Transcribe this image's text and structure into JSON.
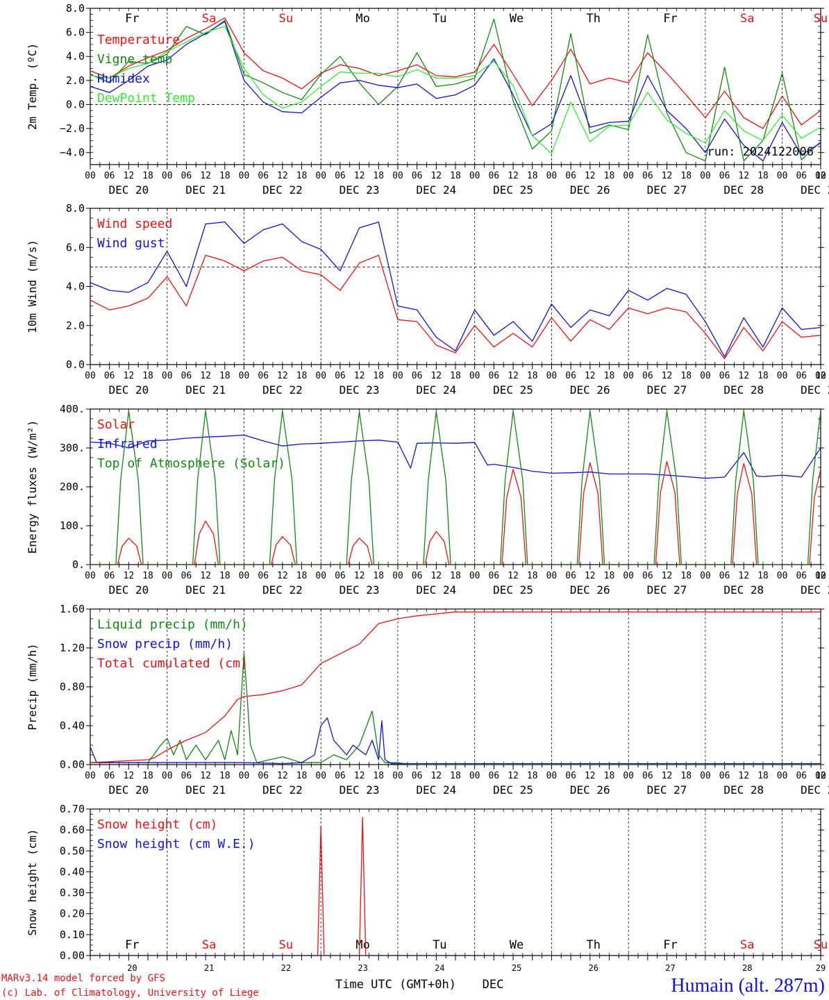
{
  "colors": {
    "red": "#ee1111",
    "darkgreen": "#118811",
    "blue": "#1111dd",
    "lightgreen": "#33ee33",
    "black": "#000000"
  },
  "days": [
    "Fr",
    "Sa",
    "Su",
    "Mo",
    "Tu",
    "We",
    "Th",
    "Fr",
    "Sa",
    "Su"
  ],
  "weekend_days": [
    1,
    2,
    8,
    9
  ],
  "date_labels": [
    "DEC 20",
    "DEC 21",
    "DEC 22",
    "DEC 23",
    "DEC 24",
    "DEC 25",
    "DEC 26",
    "DEC 27",
    "DEC 28",
    "DEC 29"
  ],
  "hour_ticks": [
    "00",
    "06",
    "12",
    "18"
  ],
  "hour_end_label": "00",
  "bottom_day_numbers": [
    "20",
    "21",
    "22",
    "23",
    "24",
    "25",
    "26",
    "27",
    "28",
    "29"
  ],
  "footer": {
    "model": "MARv3.14 model forced by GFS",
    "copyright": "(c) Lab. of Climatology, University of Liege",
    "axis_title": "Time UTC (GMT+0h)",
    "month": "DEC",
    "station": "Humain (alt. 287m)"
  },
  "chart_data": [
    {
      "type": "line",
      "ylabel": "2m Temp. (ºC)",
      "ylim": [
        -5,
        8
      ],
      "ytick_labels": [
        "8.0",
        "6.0",
        "4.0",
        "2.0",
        "0.0",
        "−2.0",
        "−4.0"
      ],
      "ref_line": 0,
      "x_unit": "hours since DEC 20 00 UTC",
      "annotation": "run: 2024122006",
      "legend_top_row": 2,
      "series": [
        {
          "name": "Temperature",
          "color": "red",
          "x": [
            0,
            6,
            12,
            18,
            24,
            30,
            36,
            42,
            48,
            54,
            60,
            66,
            72,
            78,
            84,
            90,
            96,
            102,
            108,
            114,
            120,
            126,
            132,
            138,
            144,
            150,
            156,
            162,
            168,
            174,
            180,
            186,
            192,
            198,
            204,
            210,
            216,
            222,
            228
          ],
          "values": [
            2.8,
            2.2,
            3.2,
            3.9,
            4.5,
            5.5,
            6.3,
            7.2,
            4.3,
            2.8,
            2.2,
            1.3,
            2.6,
            3.3,
            3.0,
            2.4,
            2.8,
            3.3,
            2.4,
            2.3,
            2.7,
            5.0,
            2.5,
            -0.1,
            2.0,
            4.6,
            1.7,
            2.2,
            1.8,
            4.3,
            2.6,
            0.8,
            -1.1,
            1.1,
            -1.1,
            -2.0,
            0.7,
            -1.7,
            -0.5
          ]
        },
        {
          "name": "Vigne temp",
          "color": "darkgreen",
          "x": [
            0,
            6,
            12,
            18,
            24,
            30,
            36,
            42,
            48,
            54,
            60,
            66,
            72,
            78,
            84,
            90,
            96,
            102,
            108,
            114,
            120,
            126,
            132,
            138,
            144,
            150,
            156,
            162,
            168,
            174,
            180,
            186,
            192,
            198,
            204,
            210,
            216,
            222,
            228
          ],
          "values": [
            2.5,
            1.8,
            3.6,
            3.4,
            4.2,
            6.5,
            5.8,
            7.0,
            2.5,
            1.8,
            1.0,
            0.4,
            2.5,
            4.0,
            1.8,
            0.0,
            1.5,
            4.3,
            1.5,
            1.7,
            2.2,
            7.1,
            0.3,
            -3.7,
            -2.2,
            5.9,
            -2.4,
            -1.7,
            -2.1,
            5.8,
            -0.7,
            -4.0,
            -4.7,
            3.1,
            -4.7,
            -3.0,
            2.6,
            -4.6,
            -3.1
          ]
        },
        {
          "name": "Humidex",
          "color": "blue",
          "x": [
            0,
            6,
            12,
            18,
            24,
            30,
            36,
            42,
            48,
            54,
            60,
            66,
            72,
            78,
            84,
            90,
            96,
            102,
            108,
            114,
            120,
            126,
            132,
            138,
            144,
            150,
            156,
            162,
            168,
            174,
            180,
            186,
            192,
            198,
            204,
            210,
            216,
            222,
            228
          ],
          "values": [
            1.5,
            1.0,
            2.0,
            3.2,
            3.7,
            5.0,
            5.9,
            6.9,
            2.0,
            0.2,
            -0.6,
            -0.7,
            0.6,
            1.8,
            2.0,
            1.6,
            1.4,
            1.7,
            0.5,
            0.8,
            1.6,
            3.8,
            0.8,
            -2.6,
            -1.6,
            2.4,
            -1.9,
            -1.5,
            -1.4,
            2.4,
            -0.5,
            -2.0,
            -4.0,
            -1.2,
            -3.4,
            -4.7,
            -1.5,
            -4.2,
            -3.2
          ]
        },
        {
          "name": "DewPoint Temp",
          "color": "lightgreen",
          "x": [
            0,
            6,
            12,
            18,
            24,
            30,
            36,
            42,
            48,
            54,
            60,
            66,
            72,
            78,
            84,
            90,
            96,
            102,
            108,
            114,
            120,
            126,
            132,
            138,
            144,
            150,
            156,
            162,
            168,
            174,
            180,
            186,
            192,
            198,
            204,
            210,
            216,
            222,
            228
          ],
          "values": [
            2.4,
            2.2,
            3.0,
            3.4,
            4.4,
            5.2,
            6.0,
            6.5,
            3.0,
            0.8,
            -0.3,
            0.2,
            1.5,
            2.7,
            2.6,
            2.6,
            2.3,
            2.9,
            2.2,
            2.2,
            2.4,
            3.6,
            1.6,
            -2.6,
            -4.1,
            0.2,
            -3.1,
            -1.8,
            -1.7,
            1.0,
            -1.3,
            -2.4,
            -3.2,
            -0.5,
            -2.2,
            -3.0,
            -0.9,
            -2.8,
            -1.9
          ]
        }
      ]
    },
    {
      "type": "line",
      "ylabel": "10m Wind (m/s)",
      "ylim": [
        0,
        8
      ],
      "ytick_labels": [
        "8.0",
        "6.0",
        "4.0",
        "2.0",
        "0.0"
      ],
      "ref_line": 5,
      "x_unit": "hours since DEC 20 00 UTC",
      "legend_top_row": 1,
      "series": [
        {
          "name": "Wind speed",
          "color": "red",
          "x": [
            0,
            6,
            12,
            18,
            24,
            30,
            36,
            42,
            48,
            54,
            60,
            66,
            72,
            78,
            84,
            90,
            96,
            102,
            108,
            114,
            120,
            126,
            132,
            138,
            144,
            150,
            156,
            162,
            168,
            174,
            180,
            186,
            192,
            198,
            204,
            210,
            216,
            222,
            228
          ],
          "values": [
            3.3,
            2.8,
            3.0,
            3.4,
            4.5,
            3.0,
            5.6,
            5.3,
            4.8,
            5.3,
            5.5,
            4.8,
            4.6,
            3.8,
            5.2,
            5.6,
            2.3,
            2.2,
            1.0,
            0.6,
            2.0,
            0.9,
            1.6,
            0.9,
            2.4,
            1.2,
            2.3,
            1.8,
            2.9,
            2.6,
            2.9,
            2.7,
            1.6,
            0.3,
            1.9,
            0.7,
            2.2,
            1.4,
            1.5
          ]
        },
        {
          "name": "Wind gust",
          "color": "blue",
          "x": [
            0,
            6,
            12,
            18,
            24,
            30,
            36,
            42,
            48,
            54,
            60,
            66,
            72,
            78,
            84,
            90,
            96,
            102,
            108,
            114,
            120,
            126,
            132,
            138,
            144,
            150,
            156,
            162,
            168,
            174,
            180,
            186,
            192,
            198,
            204,
            210,
            216,
            222,
            228
          ],
          "values": [
            4.2,
            3.8,
            3.7,
            4.2,
            5.8,
            4.0,
            7.2,
            7.3,
            6.2,
            6.9,
            7.2,
            6.3,
            5.9,
            4.8,
            7.0,
            7.3,
            3.0,
            2.8,
            1.4,
            0.7,
            2.8,
            1.5,
            2.2,
            1.2,
            3.1,
            1.9,
            2.8,
            2.5,
            3.8,
            3.3,
            3.9,
            3.6,
            2.2,
            0.4,
            2.4,
            0.9,
            2.9,
            1.8,
            1.9
          ]
        }
      ]
    },
    {
      "type": "line",
      "ylabel": "Energy fluxes (W/m²)",
      "ylim": [
        0,
        400
      ],
      "ytick_labels": [
        "400.",
        "300.",
        "200.",
        "100.",
        "0."
      ],
      "x_unit": "hours since DEC 20 00 UTC",
      "legend_top_row": 1,
      "solar_noon_peaks": {
        "Solar": [
          68,
          112,
          72,
          68,
          85,
          245,
          262,
          265,
          260,
          245
        ],
        "Top of Atmosphere (Solar)": [
          395,
          395,
          395,
          393,
          393,
          395,
          395,
          395,
          395,
          395
        ]
      },
      "series": [
        {
          "name": "Solar",
          "color": "red"
        },
        {
          "name": "Infrared",
          "color": "blue",
          "x": [
            0,
            6,
            12,
            18,
            24,
            30,
            36,
            42,
            48,
            54,
            60,
            66,
            72,
            78,
            84,
            90,
            96,
            100,
            102,
            108,
            114,
            120,
            124,
            126,
            132,
            138,
            144,
            150,
            156,
            162,
            168,
            174,
            180,
            186,
            192,
            198,
            204,
            208,
            210,
            216,
            222,
            228
          ],
          "values": [
            315,
            312,
            300,
            318,
            320,
            325,
            328,
            330,
            333,
            318,
            305,
            310,
            312,
            315,
            318,
            320,
            315,
            248,
            312,
            313,
            312,
            314,
            256,
            258,
            250,
            240,
            235,
            236,
            238,
            233,
            233,
            233,
            230,
            226,
            222,
            225,
            288,
            228,
            226,
            230,
            225,
            300
          ]
        },
        {
          "name": "Top of Atmosphere (Solar)",
          "color": "darkgreen"
        }
      ]
    },
    {
      "type": "line",
      "ylabel": "Precip (mm/h)",
      "ylim": [
        0,
        1.6
      ],
      "ytick_labels": [
        "1.60",
        "1.20",
        "0.80",
        "0.40",
        "0.00"
      ],
      "x_unit": "hours since DEC 20 00 UTC",
      "legend_top_row": 1,
      "series": [
        {
          "name": "Liquid precip (mm/h)",
          "color": "darkgreen",
          "x": [
            0,
            18,
            22,
            24,
            26,
            28,
            30,
            33,
            36,
            40,
            42,
            44,
            46,
            48,
            50,
            52,
            56,
            60,
            66,
            72,
            76,
            80,
            84,
            88,
            90,
            92,
            96,
            100,
            228
          ],
          "values": [
            0.02,
            0.02,
            0.2,
            0.27,
            0.1,
            0.25,
            0.05,
            0.2,
            0.05,
            0.25,
            0.05,
            0.35,
            0.1,
            1.15,
            0.2,
            0.02,
            0.05,
            0.08,
            0.02,
            0.02,
            0.1,
            0.05,
            0.2,
            0.55,
            0.1,
            0.02,
            0.02,
            0.0,
            0.0
          ]
        },
        {
          "name": "Snow precip (mm/h)",
          "color": "blue",
          "x": [
            0,
            2,
            24,
            48,
            60,
            66,
            70,
            72,
            74,
            76,
            80,
            82,
            84,
            86,
            88,
            90,
            91,
            92,
            94,
            228
          ],
          "values": [
            0.18,
            0.02,
            0.02,
            0.02,
            0.01,
            0.02,
            0.1,
            0.4,
            0.48,
            0.25,
            0.1,
            0.2,
            0.15,
            0.1,
            0.25,
            0.05,
            0.45,
            0.05,
            0.01,
            0.01
          ]
        },
        {
          "name": "Total cumulated (cm)",
          "color": "red",
          "x": [
            0,
            6,
            12,
            18,
            20,
            24,
            30,
            36,
            42,
            46,
            48,
            54,
            60,
            66,
            72,
            78,
            84,
            90,
            96,
            102,
            108,
            114,
            228
          ],
          "values": [
            0.02,
            0.03,
            0.04,
            0.05,
            0.07,
            0.15,
            0.25,
            0.33,
            0.5,
            0.67,
            0.7,
            0.72,
            0.76,
            0.82,
            1.04,
            1.14,
            1.24,
            1.45,
            1.5,
            1.53,
            1.55,
            1.57,
            1.57
          ]
        }
      ]
    },
    {
      "type": "line",
      "ylabel": "Snow height (cm)",
      "ylim": [
        0,
        0.7
      ],
      "ytick_labels": [
        "0.70",
        "0.60",
        "0.50",
        "0.40",
        "0.30",
        "0.20",
        "0.10",
        "0.00"
      ],
      "x_unit": "hours since DEC 20 00 UTC",
      "legend_top_row": 1,
      "series": [
        {
          "name": "Snow height (cm)",
          "color": "red",
          "x": [
            0,
            71,
            72,
            73,
            84,
            85,
            86,
            228
          ],
          "values": [
            0,
            0,
            0.62,
            0,
            0,
            0.66,
            0,
            0
          ]
        },
        {
          "name": "Snow height (cm W.E.)",
          "color": "blue",
          "x": [
            0,
            228
          ],
          "values": [
            0,
            0
          ]
        }
      ]
    }
  ]
}
